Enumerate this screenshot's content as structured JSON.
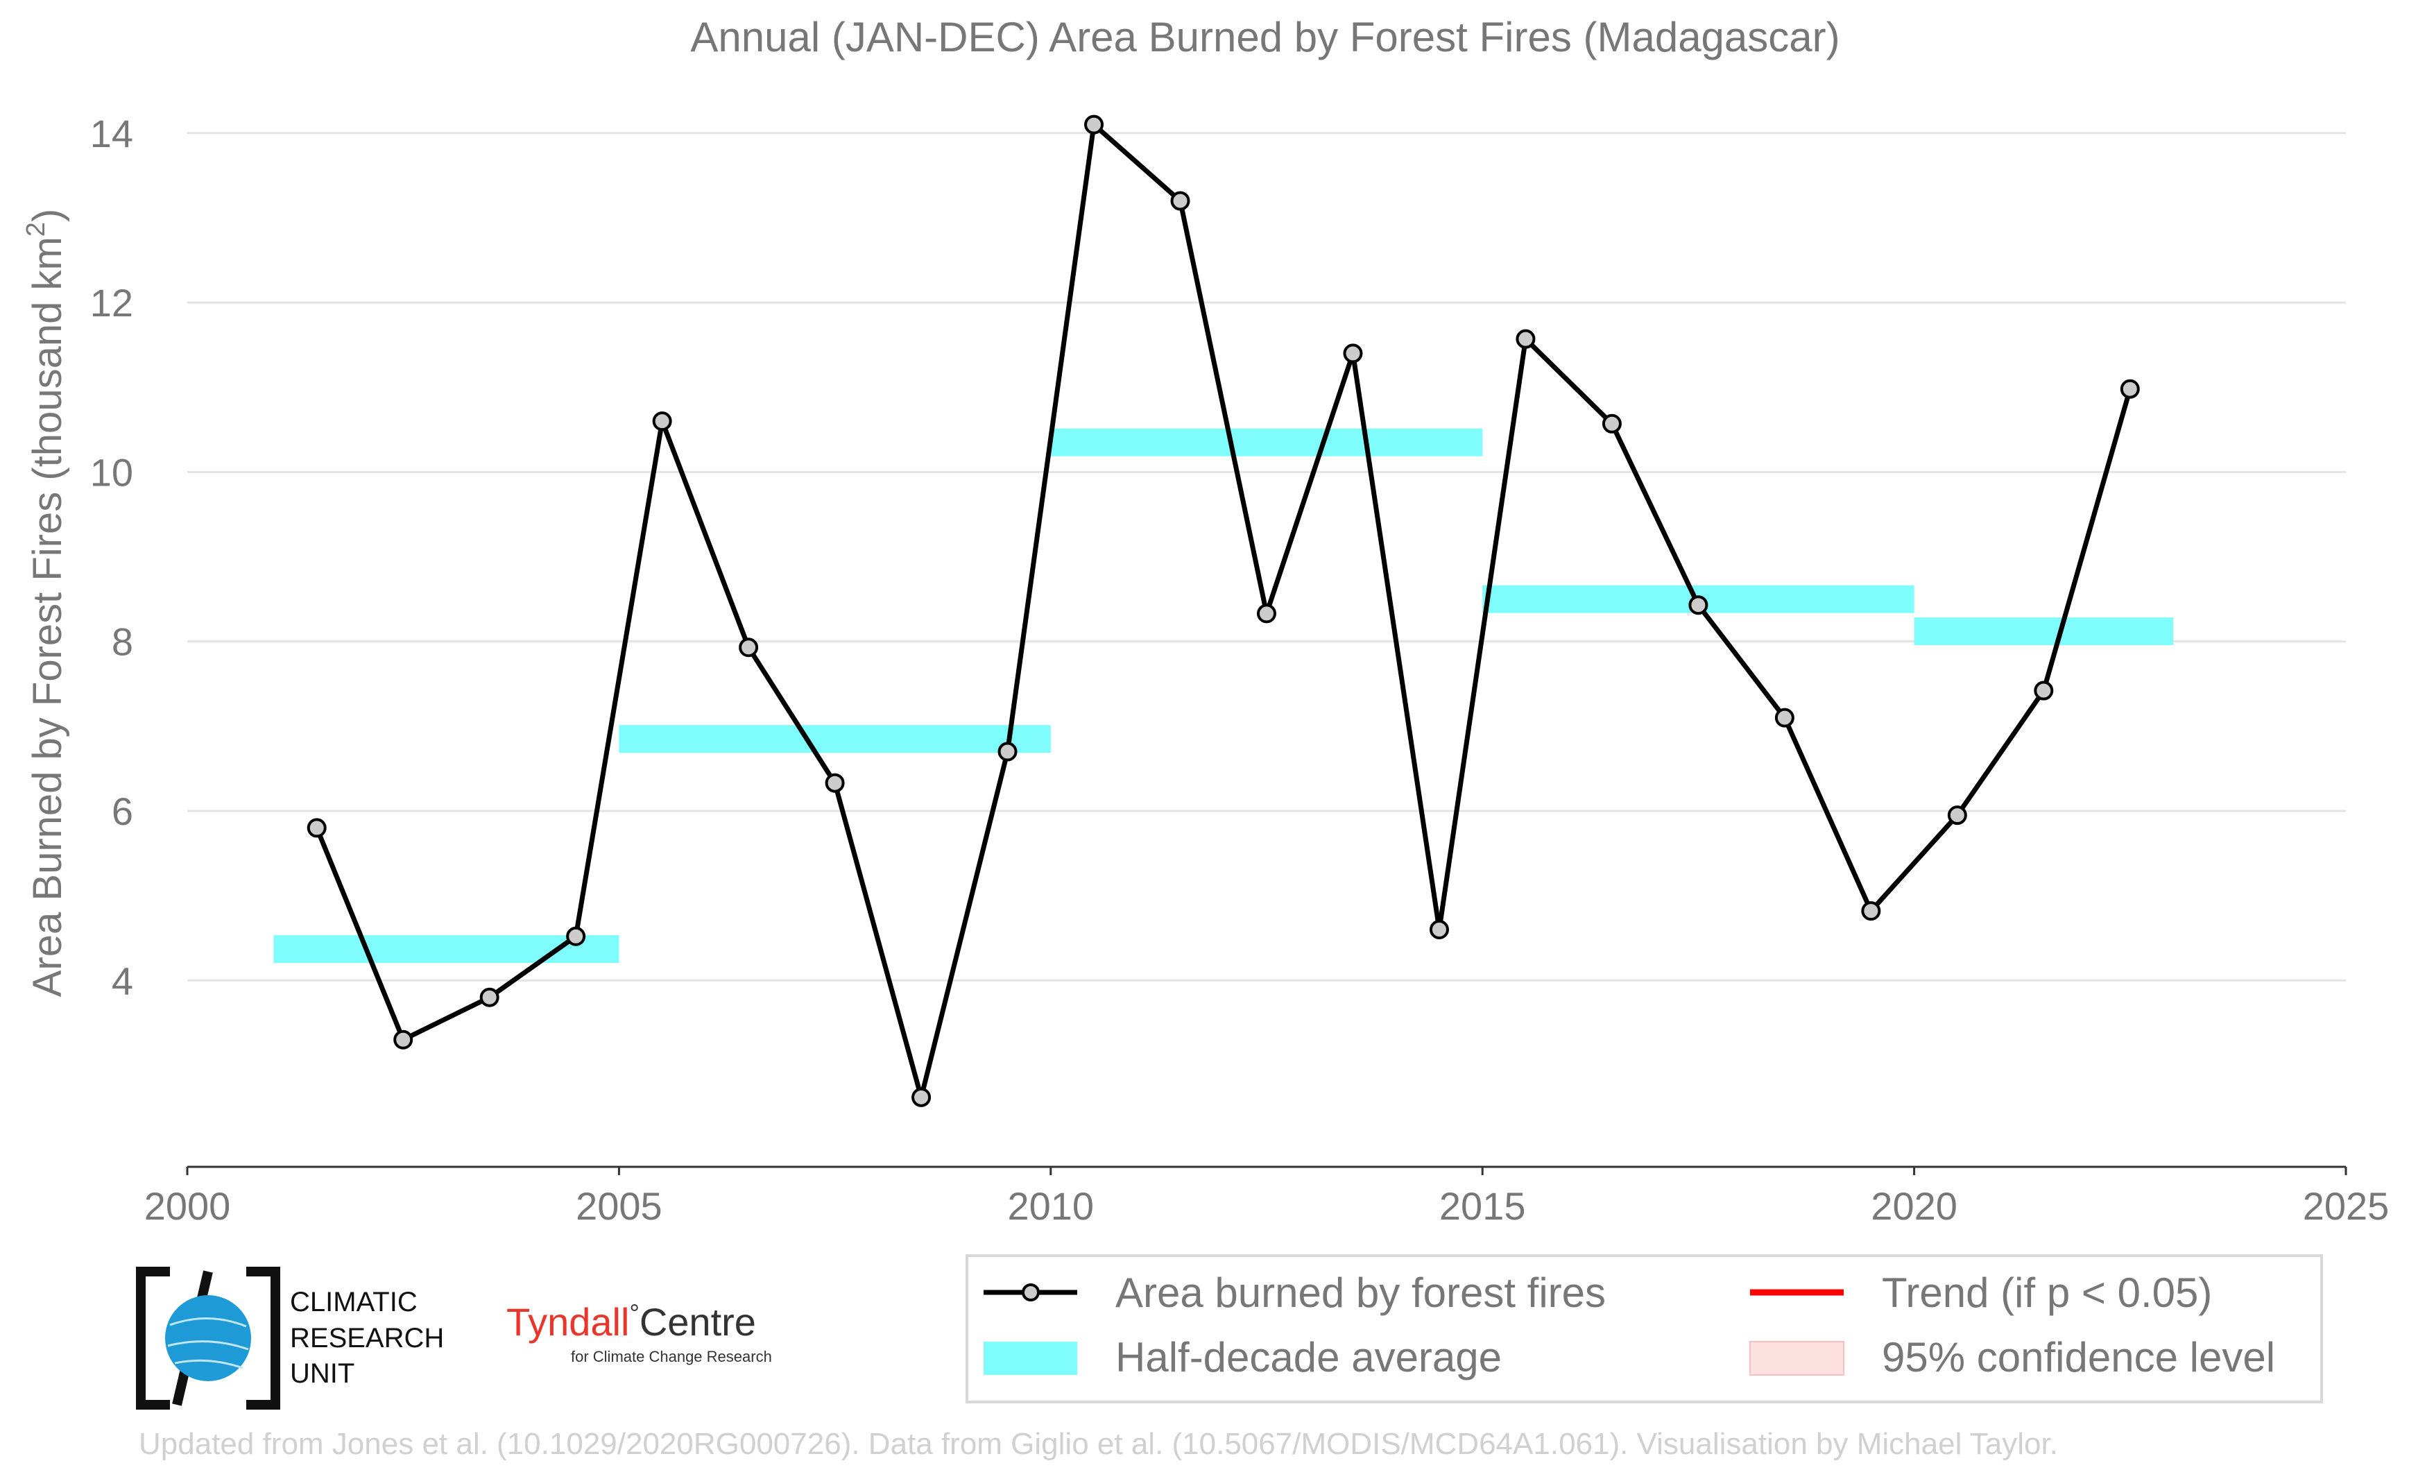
{
  "chart_data": {
    "type": "line",
    "title": "Annual (JAN-DEC) Area Burned by Forest Fires (Madagascar)",
    "xlabel": "",
    "ylabel_main": "Area Burned by Forest Fires (thousand km",
    "ylabel_sup": "2",
    "ylabel_tail": ")",
    "xlim": [
      2000,
      2025
    ],
    "ylim": [
      1.8,
      14.4
    ],
    "xticks": [
      2000,
      2005,
      2010,
      2015,
      2020,
      2025
    ],
    "yticks": [
      4,
      6,
      8,
      10,
      12,
      14
    ],
    "grid": true,
    "series": [
      {
        "name": "Area burned by forest fires",
        "color": "#000000",
        "marker_fill": "#cccccc",
        "x": [
          2001.5,
          2002.5,
          2003.5,
          2004.5,
          2005.5,
          2006.5,
          2007.5,
          2008.5,
          2009.5,
          2010.5,
          2011.5,
          2012.5,
          2013.5,
          2014.5,
          2015.5,
          2016.5,
          2017.5,
          2018.5,
          2019.5,
          2020.5,
          2021.5,
          2022.5
        ],
        "y": [
          5.8,
          3.3,
          3.8,
          4.52,
          10.6,
          7.93,
          6.33,
          2.62,
          6.7,
          14.1,
          13.2,
          8.33,
          11.4,
          4.6,
          11.57,
          10.57,
          8.43,
          7.1,
          4.82,
          5.95,
          7.42,
          10.98
        ]
      }
    ],
    "half_decade_average": {
      "name": "Half-decade average",
      "color": "#7ffcfc",
      "segments": [
        {
          "x0": 2001,
          "x1": 2005,
          "y": 4.37
        },
        {
          "x0": 2005,
          "x1": 2010,
          "y": 6.85
        },
        {
          "x0": 2010,
          "x1": 2015,
          "y": 10.35
        },
        {
          "x0": 2015,
          "x1": 2020,
          "y": 8.5
        },
        {
          "x0": 2020,
          "x1": 2023,
          "y": 8.12
        }
      ]
    },
    "legend": {
      "placement": "bottom-right",
      "entries": [
        {
          "label": "Area burned by forest fires",
          "type": "line-marker",
          "color": "#000000"
        },
        {
          "label": "Trend (if p < 0.05)",
          "type": "line",
          "color": "#ff0000"
        },
        {
          "label": "Half-decade average",
          "type": "band",
          "color": "#7ffcfc"
        },
        {
          "label": "95% confidence level",
          "type": "patch",
          "color": "#fde0e0"
        }
      ]
    }
  },
  "logos": {
    "cru_line1": "CLIMATIC",
    "cru_line2": "RESEARCH",
    "cru_line3": "UNIT",
    "tyndall_name": "Tyndall",
    "tyndall_degree": "°",
    "tyndall_centre": "Centre",
    "tyndall_sub": "for Climate Change Research"
  },
  "footer": {
    "credit": "Updated from Jones et al. (10.1029/2020RG000726). Data from Giglio et al. (10.5067/MODIS/MCD64A1.061). Visualisation by Michael Taylor."
  }
}
